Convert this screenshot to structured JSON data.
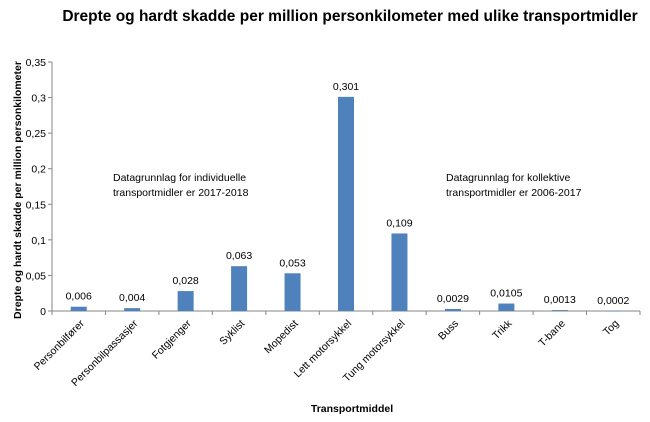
{
  "chart_data": {
    "type": "bar",
    "title": "Drepte og hardt skadde per million personkilometer med ulike transportmidler",
    "xlabel": "Transportmiddel",
    "ylabel": "Drepte og hardt skadde per million personkilometer",
    "ylim": [
      0,
      0.35
    ],
    "yticks": [
      "0",
      "0,05",
      "0,1",
      "0,15",
      "0,2",
      "0,25",
      "0,3",
      "0,35"
    ],
    "categories": [
      "Personbilfører",
      "Personbilpassasjer",
      "Fotgjenger",
      "Syklist",
      "Mopedist",
      "Lett motorsykkel",
      "Tung motorsykkel",
      "Buss",
      "Trikk",
      "T-bane",
      "Tog"
    ],
    "values": [
      0.006,
      0.004,
      0.028,
      0.063,
      0.053,
      0.301,
      0.109,
      0.0029,
      0.0105,
      0.0013,
      0.0002
    ],
    "data_labels": [
      "0,006",
      "0,004",
      "0,028",
      "0,063",
      "0,053",
      "0,301",
      "0,109",
      "0,0029",
      "0,0105",
      "0,0013",
      "0,0002"
    ],
    "bar_color": "#4f81bd",
    "grid": false,
    "legend": "none",
    "annotations": [
      {
        "lines": [
          "Datagrunnlag for individuelle",
          "transportmidler er 2017-2018"
        ]
      },
      {
        "lines": [
          "Datagrunnlag for kollektive",
          "transportmidler er 2006-2017"
        ]
      }
    ]
  }
}
